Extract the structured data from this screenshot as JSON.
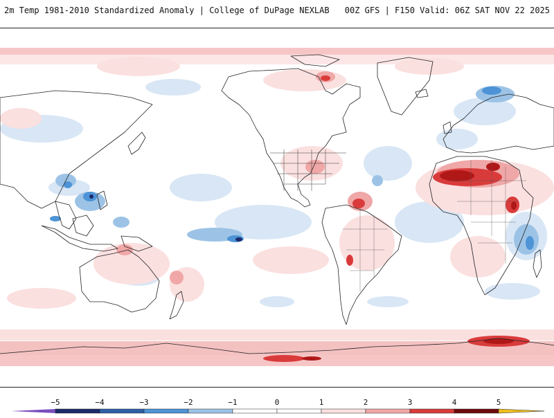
{
  "header": {
    "title": "2m Temp 1981-2010 Standardized Anomaly | College of DuPage NEXLAB",
    "run_info": "00Z GFS | F150 Valid: 06Z SAT NOV 22 2025"
  },
  "map": {
    "variable": "2m Temp Standardized Anomaly",
    "projection": "global-equirectangular"
  },
  "legend": {
    "tick_labels": [
      "−5",
      "−4",
      "−3",
      "−2",
      "−1",
      "0",
      "1",
      "2",
      "3",
      "4",
      "5"
    ],
    "colors": {
      "neg_extreme": "#7a4fc0",
      "neg5": "#1b2a6b",
      "neg4": "#2e5fa8",
      "neg3": "#4d93d6",
      "neg2": "#9cc3e6",
      "neg1": "#d8e6f5",
      "zero": "#ffffff",
      "pos1": "#fbe0e0",
      "pos2": "#f0a7a7",
      "pos3": "#d93b3b",
      "pos4": "#b01818",
      "pos5": "#6e0a0a",
      "pos_extreme": "#f0c020"
    }
  }
}
